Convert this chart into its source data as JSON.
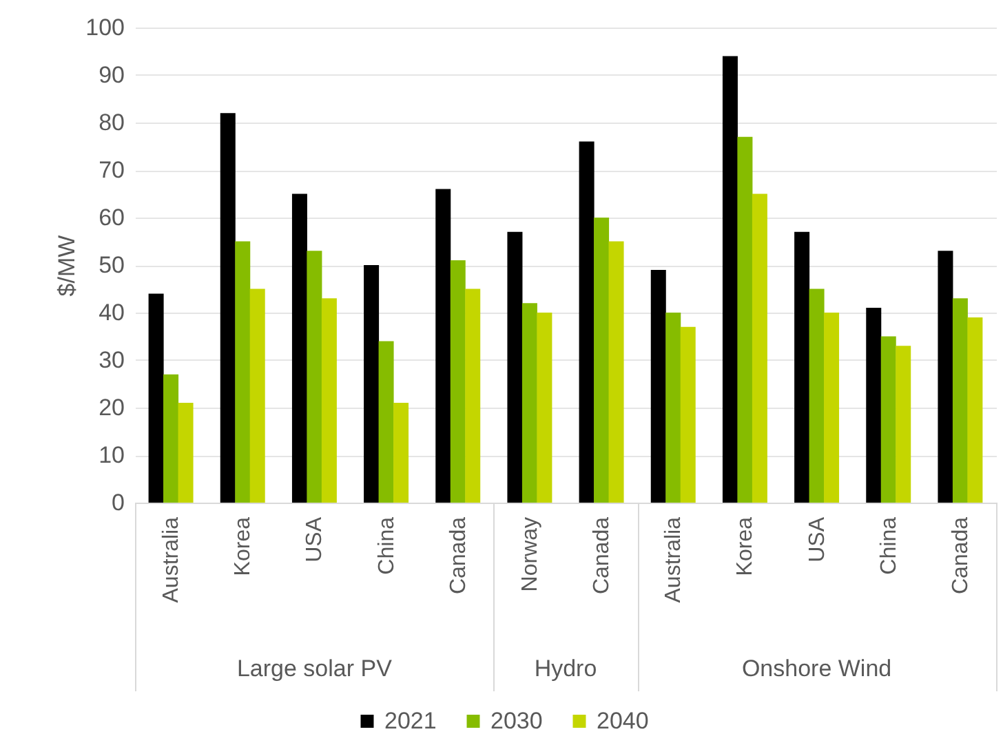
{
  "chart_data": {
    "type": "bar",
    "ylabel": "$/MW",
    "categories": [
      "Australia",
      "Korea",
      "USA",
      "China",
      "Canada",
      "Norway",
      "Canada",
      "Australia",
      "Korea",
      "USA",
      "China",
      "Canada"
    ],
    "series": [
      {
        "name": "2021",
        "color": "#000000",
        "values": [
          44,
          82,
          65,
          50,
          66,
          57,
          76,
          49,
          94,
          57,
          41,
          53
        ]
      },
      {
        "name": "2030",
        "color": "#86bc00",
        "values": [
          27,
          55,
          53,
          34,
          51,
          42,
          60,
          40,
          77,
          45,
          35,
          43
        ]
      },
      {
        "name": "2040",
        "color": "#c4d600",
        "values": [
          21,
          45,
          43,
          21,
          45,
          40,
          55,
          37,
          65,
          40,
          33,
          39
        ]
      }
    ],
    "annotations": [
      "Large solar PV",
      "Hydro",
      "Onshore Wind"
    ],
    "ylim": [
      0,
      100
    ],
    "yticks": [
      0,
      10,
      20,
      30,
      40,
      50,
      60,
      70,
      80,
      90,
      100
    ],
    "grid": true,
    "legend": "bottom"
  }
}
